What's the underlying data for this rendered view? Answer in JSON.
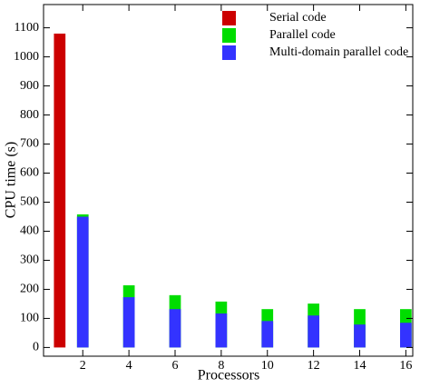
{
  "chart_data": {
    "type": "bar",
    "xlabel": "Processors",
    "ylabel": "CPU time (s)",
    "series": [
      {
        "name": "Serial code",
        "color": "#cc0000",
        "x": [
          1
        ],
        "values": [
          1080
        ]
      },
      {
        "name": "Parallel code",
        "color": "#00dd00",
        "x": [
          2,
          4,
          6,
          8,
          10,
          12,
          14,
          16
        ],
        "values": [
          458,
          214,
          180,
          158,
          132,
          151,
          132,
          132
        ]
      },
      {
        "name": "Multi-domain parallel code",
        "color": "#3333ff",
        "x": [
          2,
          4,
          6,
          8,
          10,
          12,
          14,
          16
        ],
        "values": [
          450,
          173,
          132,
          117,
          91,
          110,
          79,
          85
        ]
      }
    ],
    "xlim": [
      0.3,
      16.3
    ],
    "xticks": [
      2,
      4,
      6,
      8,
      10,
      12,
      14,
      16
    ],
    "ylim": [
      -30,
      1180
    ],
    "yticks": [
      0,
      100,
      200,
      300,
      400,
      500,
      600,
      700,
      800,
      900,
      1000,
      1100
    ],
    "legend": "upper right"
  }
}
